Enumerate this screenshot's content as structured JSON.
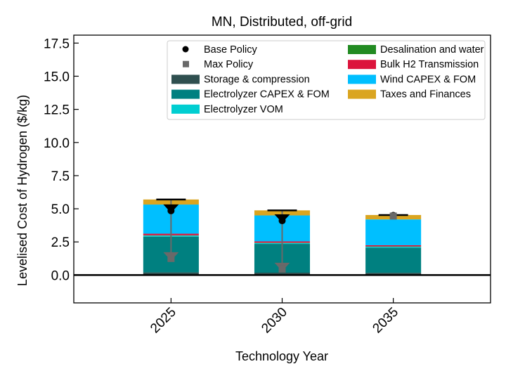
{
  "chart_data": {
    "type": "bar",
    "stacked": true,
    "title": "MN, Distributed, off-grid",
    "xlabel": "Technology Year",
    "ylabel": "Levelised Cost of Hydrogen ($/kg)",
    "ylim": [
      -2.1,
      18.1
    ],
    "yticks": [
      0.0,
      2.5,
      5.0,
      7.5,
      10.0,
      12.5,
      15.0,
      17.5
    ],
    "ytick_labels": [
      "0.0",
      "2.5",
      "5.0",
      "7.5",
      "10.0",
      "12.5",
      "15.0",
      "17.5"
    ],
    "categories": [
      "2025",
      "2030",
      "2035"
    ],
    "grid": false,
    "legend_position": "top-right",
    "series": [
      {
        "name": "Storage & compression",
        "color": "#2f4f4f",
        "values": [
          0.2,
          0.18,
          0.17
        ]
      },
      {
        "name": "Electrolyzer CAPEX & FOM",
        "color": "#008080",
        "values": [
          2.7,
          2.17,
          1.9
        ]
      },
      {
        "name": "Electrolyzer VOM",
        "color": "#00ced1",
        "values": [
          0.08,
          0.07,
          0.07
        ]
      },
      {
        "name": "Desalination and water",
        "color": "#228b22",
        "values": [
          0.02,
          0.02,
          0.02
        ]
      },
      {
        "name": "Bulk H2 Transmission",
        "color": "#dc143c",
        "values": [
          0.12,
          0.1,
          0.09
        ]
      },
      {
        "name": "Wind CAPEX & FOM",
        "color": "#00bfff",
        "values": [
          2.2,
          1.96,
          1.95
        ]
      },
      {
        "name": "Taxes and Finances",
        "color": "#daa520",
        "values": [
          0.38,
          0.38,
          0.33
        ]
      }
    ],
    "totals": [
      5.7,
      4.88,
      4.53
    ],
    "base_policy": [
      4.85,
      4.1,
      4.5
    ],
    "max_policy": [
      1.25,
      0.45,
      4.45
    ],
    "base_policy_label": "Base Policy",
    "max_policy_label": "Max Policy",
    "base_policy_color": "#000000",
    "max_policy_color": "#696969"
  }
}
